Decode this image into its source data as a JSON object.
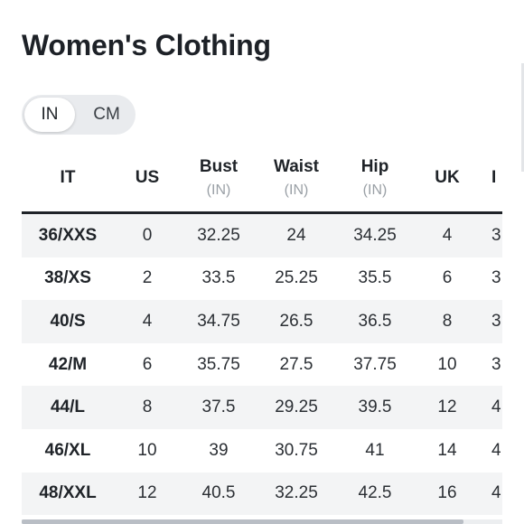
{
  "title": "Women's Clothing",
  "unit_toggle": {
    "options": [
      "IN",
      "CM"
    ],
    "selected": "IN"
  },
  "table": {
    "headers": [
      {
        "label": "IT",
        "unit": ""
      },
      {
        "label": "US",
        "unit": ""
      },
      {
        "label": "Bust",
        "unit": "(IN)"
      },
      {
        "label": "Waist",
        "unit": "(IN)"
      },
      {
        "label": "Hip",
        "unit": "(IN)"
      },
      {
        "label": "UK",
        "unit": ""
      },
      {
        "label": "I",
        "unit": ""
      }
    ],
    "rows": [
      [
        "36/XXS",
        "0",
        "32.25",
        "24",
        "34.25",
        "4",
        "3"
      ],
      [
        "38/XS",
        "2",
        "33.5",
        "25.25",
        "35.5",
        "6",
        "3"
      ],
      [
        "40/S",
        "4",
        "34.75",
        "26.5",
        "36.5",
        "8",
        "3"
      ],
      [
        "42/M",
        "6",
        "35.75",
        "27.5",
        "37.75",
        "10",
        "3"
      ],
      [
        "44/L",
        "8",
        "37.5",
        "29.25",
        "39.5",
        "12",
        "4"
      ],
      [
        "46/XL",
        "10",
        "39",
        "30.75",
        "41",
        "14",
        "4"
      ],
      [
        "48/XXL",
        "12",
        "40.5",
        "32.25",
        "42.5",
        "16",
        "4"
      ]
    ]
  },
  "scrollbar": {
    "visible_fraction": 0.92
  }
}
